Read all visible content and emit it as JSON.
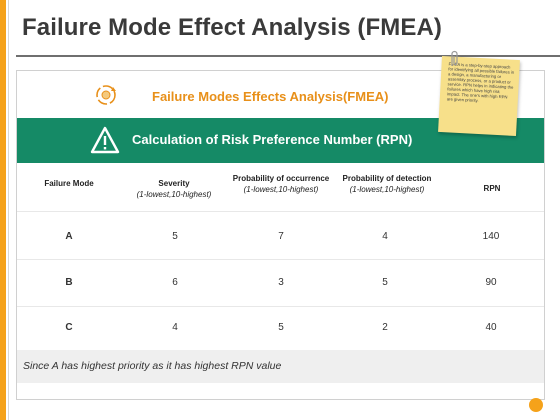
{
  "slide": {
    "title": "Failure Mode Effect Analysis (FMEA)"
  },
  "card": {
    "header_title": "Failure Modes Effects Analysis(FMEA)",
    "subheader_title": "Calculation of Risk Preference Number (RPN)",
    "logo_icon": "gear-cycle-icon",
    "warning_icon": "warning-triangle-icon",
    "accent_color": "#e8901a",
    "green_color": "#158a66"
  },
  "note": {
    "text": "FMEA is a step-by-step approach for identifying all possible failures in a design, a manufacturing or assembly process, or a product or service. RPN helps in indicating the failures which have high risk impact. The one's with high RPN are given priority."
  },
  "table": {
    "headers": [
      {
        "main": "Failure Mode",
        "sub": ""
      },
      {
        "main": "Severity",
        "sub": "(1-lowest,10-highest)"
      },
      {
        "main": "Probability of occurrence",
        "sub": "(1-lowest,10-highest)"
      },
      {
        "main": "Probability of detection",
        "sub": "(1-lowest,10-highest)"
      },
      {
        "main": "RPN",
        "sub": ""
      }
    ],
    "rows": [
      [
        "A",
        "5",
        "7",
        "4",
        "140"
      ],
      [
        "B",
        "6",
        "3",
        "5",
        "90"
      ],
      [
        "C",
        "4",
        "5",
        "2",
        "40"
      ]
    ]
  },
  "footer": {
    "text": "Since A has highest priority as it has highest RPN value"
  }
}
